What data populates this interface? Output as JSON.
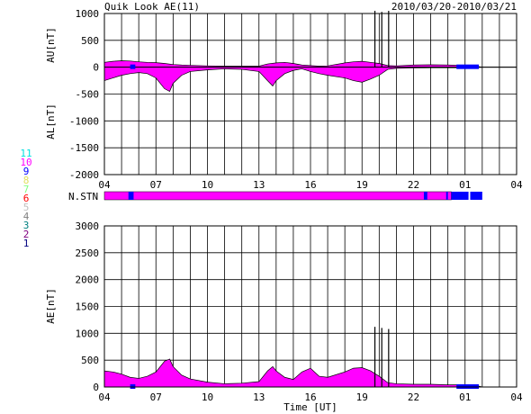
{
  "header": {
    "title": "Quik Look AE(11)",
    "date_range": "2010/03/20-2010/03/21"
  },
  "colors": {
    "positive": "#ff00ff",
    "negative": "#ff00ff",
    "blue_segment": "#0000ff",
    "axis": "#000000"
  },
  "station_legend": [
    {
      "label": "11",
      "color": "#00e0e0"
    },
    {
      "label": "10",
      "color": "#ff00ff"
    },
    {
      "label": "9",
      "color": "#0000ff"
    },
    {
      "label": "8",
      "color": "#e0e060"
    },
    {
      "label": "7",
      "color": "#80ff80"
    },
    {
      "label": "6",
      "color": "#ff0000"
    },
    {
      "label": "5",
      "color": "#c0c0c0"
    },
    {
      "label": "4",
      "color": "#808080"
    },
    {
      "label": "3",
      "color": "#008080"
    },
    {
      "label": "2",
      "color": "#800080"
    },
    {
      "label": "1",
      "color": "#000080"
    }
  ],
  "stn_label": "N.STN",
  "chart_data": [
    {
      "type": "area",
      "name": "AU/AL",
      "ylabel_top": "AU[nT]",
      "ylabel_bottom": "AL[nT]",
      "ylim": [
        -2000,
        1000
      ],
      "yticks": [
        1000,
        500,
        0,
        -500,
        -1000,
        -1500,
        -2000
      ],
      "xlim": [
        4,
        28
      ],
      "xticks": [
        "04",
        "07",
        "10",
        "13",
        "16",
        "19",
        "22",
        "01",
        "04"
      ],
      "grid": true,
      "au": {
        "x": [
          4.0,
          4.5,
          5.0,
          5.5,
          6.0,
          6.5,
          7.0,
          7.5,
          8.0,
          8.5,
          9.0,
          10.0,
          11.0,
          12.0,
          13.0,
          13.5,
          14.0,
          14.5,
          15.0,
          15.5,
          16.0,
          16.5,
          17.0,
          18.0,
          18.5,
          19.0,
          19.5,
          20.0,
          20.5,
          21.0,
          22.0,
          23.0,
          24.0,
          25.0,
          25.5,
          26.0
        ],
        "y": [
          90,
          110,
          120,
          115,
          100,
          90,
          85,
          70,
          50,
          40,
          35,
          25,
          20,
          20,
          20,
          60,
          80,
          90,
          70,
          40,
          30,
          20,
          25,
          80,
          100,
          110,
          90,
          70,
          30,
          25,
          40,
          45,
          40,
          30,
          30,
          0
        ]
      },
      "al": {
        "x": [
          4.0,
          4.5,
          5.0,
          5.5,
          6.0,
          6.5,
          7.0,
          7.5,
          7.8,
          8.0,
          8.5,
          9.0,
          10.0,
          11.0,
          12.0,
          13.0,
          13.5,
          13.8,
          14.0,
          14.5,
          15.0,
          15.5,
          16.0,
          16.5,
          17.0,
          18.0,
          18.5,
          19.0,
          19.5,
          20.0,
          20.5,
          21.0,
          22.0,
          23.0,
          24.0,
          25.0,
          25.5,
          26.0
        ],
        "y": [
          -250,
          -200,
          -150,
          -120,
          -100,
          -120,
          -200,
          -400,
          -450,
          -300,
          -150,
          -80,
          -50,
          -30,
          -40,
          -80,
          -250,
          -350,
          -250,
          -120,
          -60,
          -30,
          -80,
          -120,
          -150,
          -200,
          -250,
          -280,
          -220,
          -150,
          -40,
          -20,
          -15,
          -10,
          -10,
          -10,
          -10,
          0
        ]
      },
      "spikes": [
        {
          "x": 19.75,
          "y": 1050
        },
        {
          "x": 20.15,
          "y": 1030
        },
        {
          "x": 20.55,
          "y": 1050
        }
      ]
    },
    {
      "type": "area",
      "name": "AE",
      "ylabel": "AE[nT]",
      "xlabel": "Time [UT]",
      "ylim": [
        0,
        3000
      ],
      "yticks": [
        3000,
        2500,
        2000,
        1500,
        1000,
        500,
        0
      ],
      "xlim": [
        4,
        28
      ],
      "xticks": [
        "04",
        "07",
        "10",
        "13",
        "16",
        "19",
        "22",
        "01",
        "04"
      ],
      "grid": true,
      "x": [
        4.0,
        4.5,
        5.0,
        5.5,
        6.0,
        6.5,
        7.0,
        7.5,
        7.8,
        8.0,
        8.5,
        9.0,
        10.0,
        11.0,
        12.0,
        13.0,
        13.5,
        13.8,
        14.0,
        14.5,
        15.0,
        15.5,
        16.0,
        16.5,
        17.0,
        18.0,
        18.5,
        19.0,
        19.5,
        20.0,
        20.5,
        21.0,
        22.0,
        23.0,
        24.0,
        25.0,
        25.5,
        26.0
      ],
      "y": [
        300,
        280,
        240,
        180,
        160,
        200,
        280,
        480,
        520,
        380,
        220,
        150,
        90,
        60,
        70,
        100,
        300,
        380,
        300,
        180,
        140,
        280,
        350,
        200,
        180,
        280,
        350,
        360,
        300,
        200,
        80,
        60,
        50,
        50,
        40,
        40,
        40,
        0
      ],
      "spikes": [
        {
          "x": 19.75,
          "y": 1120
        },
        {
          "x": 20.15,
          "y": 1100
        },
        {
          "x": 20.55,
          "y": 1080
        }
      ]
    }
  ]
}
